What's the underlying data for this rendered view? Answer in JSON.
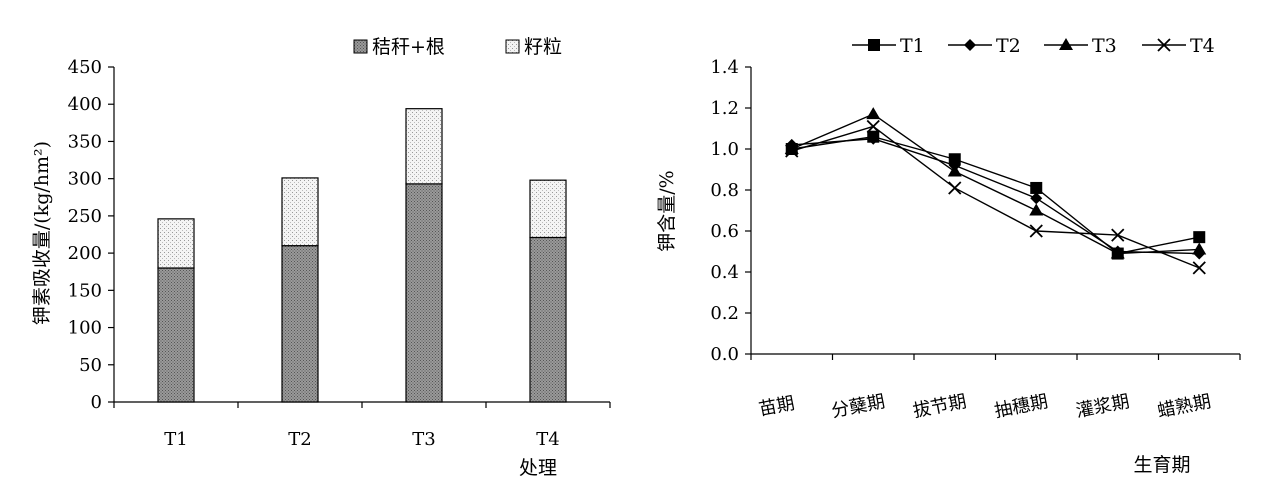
{
  "chart_data": [
    {
      "type": "bar",
      "stacked": true,
      "xlabel": "处理",
      "ylabel": "钾素吸收量/(kg/hm²)",
      "ylim": [
        0,
        450
      ],
      "yticks": [
        "0",
        "50",
        "100",
        "150",
        "200",
        "250",
        "300",
        "350",
        "400",
        "450"
      ],
      "categories": [
        "T1",
        "T2",
        "T3",
        "T4"
      ],
      "series": [
        {
          "name": "秸秆+根",
          "values": [
            180,
            210,
            293,
            221
          ],
          "color": "#8a8a8a",
          "pattern": "dense-dots"
        },
        {
          "name": "籽粒",
          "values": [
            66,
            91,
            101,
            77
          ],
          "color": "#f2f2f2",
          "pattern": "sparse-dots"
        }
      ],
      "legend": "top-right",
      "grid": false
    },
    {
      "type": "line",
      "xlabel": "生育期",
      "ylabel": "钾含量/%",
      "ylim": [
        0,
        1.4
      ],
      "yticks": [
        "0.0",
        "0.2",
        "0.4",
        "0.6",
        "0.8",
        "1.0",
        "1.2",
        "1.4"
      ],
      "categories": [
        "苗期",
        "分蘖期",
        "拔节期",
        "抽穗期",
        "灌浆期",
        "蜡熟期"
      ],
      "series": [
        {
          "name": "T1",
          "marker": "square",
          "values": [
            1.0,
            1.06,
            0.95,
            0.81,
            0.49,
            0.57
          ]
        },
        {
          "name": "T2",
          "marker": "diamond",
          "values": [
            1.02,
            1.05,
            0.92,
            0.76,
            0.5,
            0.49
          ]
        },
        {
          "name": "T3",
          "marker": "triangle",
          "values": [
            1.0,
            1.17,
            0.89,
            0.7,
            0.49,
            0.51
          ]
        },
        {
          "name": "T4",
          "marker": "x",
          "values": [
            0.99,
            1.11,
            0.81,
            0.6,
            0.58,
            0.42
          ]
        }
      ],
      "legend": "top",
      "grid": false
    }
  ]
}
